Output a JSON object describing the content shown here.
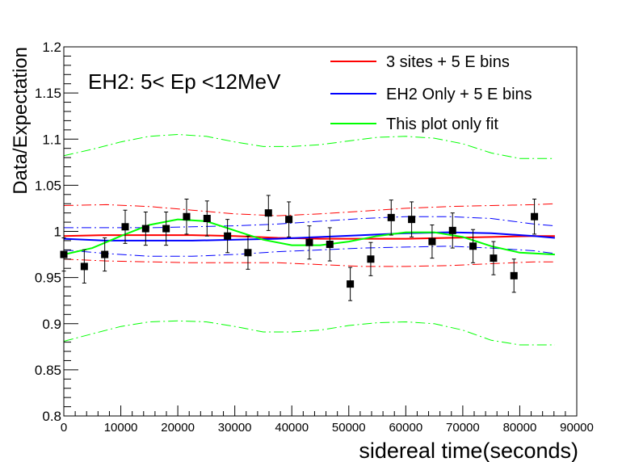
{
  "chart_data": {
    "type": "scatter",
    "title": "EH2: 5< Ep <12MeV",
    "xlabel": "sidereal time(seconds)",
    "ylabel": "Data/Expectation",
    "xlim": [
      0,
      90000
    ],
    "ylim": [
      0.8,
      1.2
    ],
    "x_ticks": [
      0,
      10000,
      20000,
      30000,
      40000,
      50000,
      60000,
      70000,
      80000,
      90000
    ],
    "x_tick_labels": [
      "0",
      "10000",
      "20000",
      "30000",
      "40000",
      "50000",
      "60000",
      "70000",
      "80000",
      "90000"
    ],
    "y_ticks": [
      0.8,
      0.85,
      0.9,
      0.95,
      1.0,
      1.05,
      1.1,
      1.15,
      1.2
    ],
    "y_tick_labels": [
      "0.8",
      "0.85",
      "0.9",
      "0.95",
      "1",
      "1.05",
      "1.1",
      "1.15",
      "1.2"
    ],
    "legend_position": "top-right",
    "data": {
      "x": [
        0,
        3590,
        7180,
        10770,
        14360,
        17950,
        21540,
        25130,
        28720,
        32310,
        35900,
        39490,
        43080,
        46670,
        50260,
        53850,
        57440,
        61030,
        64620,
        68210,
        71800,
        75390,
        78980,
        82570
      ],
      "y": [
        0.975,
        0.962,
        0.975,
        1.005,
        1.003,
        1.003,
        1.016,
        1.014,
        0.995,
        0.977,
        1.02,
        1.013,
        0.988,
        0.986,
        0.943,
        0.97,
        1.015,
        1.013,
        0.989,
        1.001,
        0.984,
        0.971,
        0.952,
        1.016
      ],
      "err": [
        0.018,
        0.018,
        0.018,
        0.018,
        0.018,
        0.018,
        0.019,
        0.019,
        0.018,
        0.018,
        0.019,
        0.019,
        0.018,
        0.018,
        0.018,
        0.018,
        0.019,
        0.019,
        0.018,
        0.019,
        0.018,
        0.018,
        0.018,
        0.019
      ]
    },
    "series": [
      {
        "name": "3 sites + 5 E bins",
        "color": "#ff0000",
        "x": [
          0,
          7500,
          15000,
          22500,
          30000,
          37500,
          45000,
          52500,
          60000,
          67500,
          75000,
          82500,
          86164
        ],
        "y": [
          0.995,
          0.996,
          0.996,
          0.996,
          0.995,
          0.993,
          0.992,
          0.992,
          0.992,
          0.993,
          0.994,
          0.995,
          0.995
        ]
      },
      {
        "name": "EH2 Only + 5 E bins",
        "color": "#0000ff",
        "x": [
          0,
          7500,
          15000,
          22500,
          30000,
          37500,
          45000,
          52500,
          60000,
          67500,
          75000,
          82500,
          86164
        ],
        "y": [
          0.992,
          0.99,
          0.99,
          0.99,
          0.991,
          0.992,
          0.994,
          0.996,
          0.998,
          0.999,
          0.998,
          0.995,
          0.993
        ]
      },
      {
        "name": "This plot only fit",
        "color": "#00ff00",
        "x": [
          0,
          5000,
          10000,
          15000,
          20000,
          25000,
          30000,
          35000,
          40000,
          45000,
          50000,
          55000,
          60000,
          65000,
          70000,
          75000,
          80000,
          86164
        ],
        "y": [
          0.975,
          0.982,
          0.995,
          1.007,
          1.013,
          1.011,
          1.001,
          0.991,
          0.985,
          0.985,
          0.989,
          0.995,
          0.999,
          0.999,
          0.994,
          0.984,
          0.977,
          0.975
        ]
      }
    ],
    "bands": [
      {
        "color": "#ff0000",
        "x": [
          0,
          7500,
          15000,
          22500,
          30000,
          37500,
          45000,
          52500,
          60000,
          67500,
          75000,
          82500,
          86164
        ],
        "upper": [
          1.028,
          1.029,
          1.027,
          1.023,
          1.019,
          1.017,
          1.019,
          1.022,
          1.025,
          1.027,
          1.028,
          1.029,
          1.03
        ],
        "lower": [
          0.97,
          0.968,
          0.967,
          0.966,
          0.966,
          0.966,
          0.964,
          0.962,
          0.962,
          0.963,
          0.965,
          0.967,
          0.967
        ]
      },
      {
        "color": "#0000ff",
        "x": [
          0,
          7500,
          15000,
          22500,
          30000,
          37500,
          45000,
          52500,
          60000,
          67500,
          75000,
          82500,
          86164
        ],
        "upper": [
          1.004,
          1.004,
          1.004,
          1.005,
          1.006,
          1.008,
          1.011,
          1.014,
          1.016,
          1.016,
          1.014,
          1.008,
          1.006
        ],
        "lower": [
          0.98,
          0.976,
          0.973,
          0.973,
          0.975,
          0.978,
          0.98,
          0.982,
          0.983,
          0.984,
          0.982,
          0.979,
          0.976
        ]
      },
      {
        "color": "#00ff00",
        "x": [
          0,
          5000,
          10000,
          15000,
          20000,
          25000,
          30000,
          35000,
          40000,
          45000,
          50000,
          55000,
          60000,
          65000,
          70000,
          75000,
          80000,
          86164
        ],
        "upper": [
          1.082,
          1.089,
          1.097,
          1.103,
          1.105,
          1.103,
          1.097,
          1.092,
          1.092,
          1.094,
          1.098,
          1.102,
          1.103,
          1.101,
          1.095,
          1.085,
          1.079,
          1.079
        ],
        "lower": [
          0.881,
          0.889,
          0.897,
          0.902,
          0.903,
          0.902,
          0.897,
          0.891,
          0.891,
          0.893,
          0.898,
          0.901,
          0.902,
          0.9,
          0.893,
          0.882,
          0.877,
          0.877
        ]
      }
    ]
  }
}
